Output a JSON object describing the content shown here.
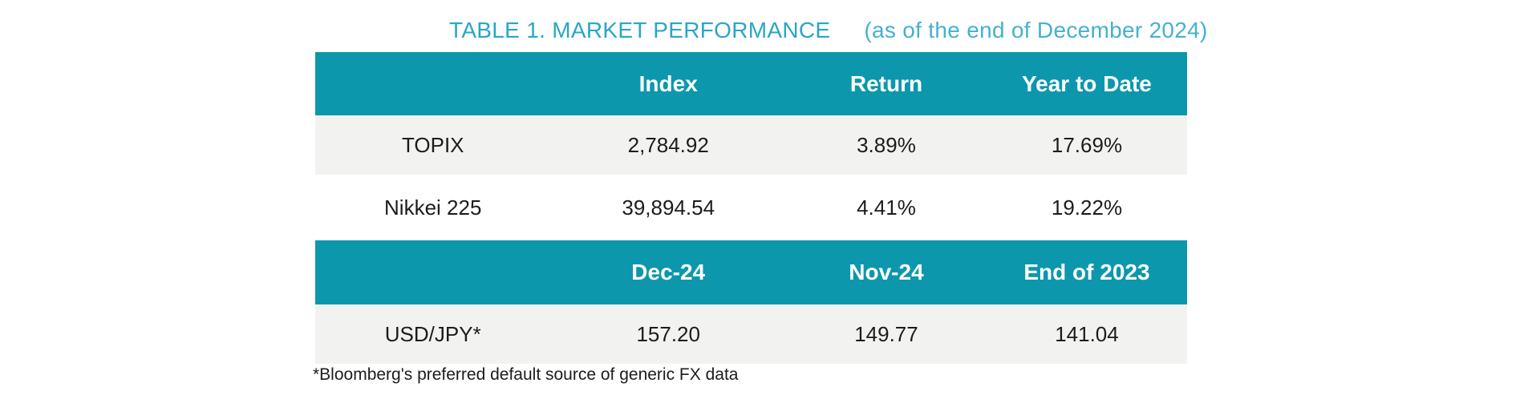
{
  "title": {
    "main": "TABLE 1. MARKET PERFORMANCE",
    "date_note": "(as of the end of December 2024)"
  },
  "footnote": "*Bloomberg's preferred default source of generic FX data",
  "colors": {
    "header_bg": "#0d97ad",
    "alt_row_bg": "#f2f2f1",
    "title_main": "#2aa6c6",
    "title_date": "#44b1d1",
    "header_text": "#ffffff",
    "body_text": "#1c1c1c"
  },
  "chart_data": [
    {
      "type": "table",
      "title": "TABLE 1. MARKET PERFORMANCE (as of the end of December 2024)",
      "columns": [
        "",
        "Index",
        "Return",
        "Year to Date"
      ],
      "rows": [
        [
          "TOPIX",
          "2,784.92",
          "3.89%",
          "17.69%"
        ],
        [
          "Nikkei 225",
          "39,894.54",
          "4.41%",
          "19.22%"
        ]
      ]
    },
    {
      "type": "table",
      "columns": [
        "",
        "Dec-24",
        "Nov-24",
        "End of 2023"
      ],
      "rows": [
        [
          "USD/JPY*",
          "157.20",
          "149.77",
          "141.04"
        ]
      ],
      "footnote": "*Bloomberg's preferred default source of generic FX data"
    }
  ]
}
